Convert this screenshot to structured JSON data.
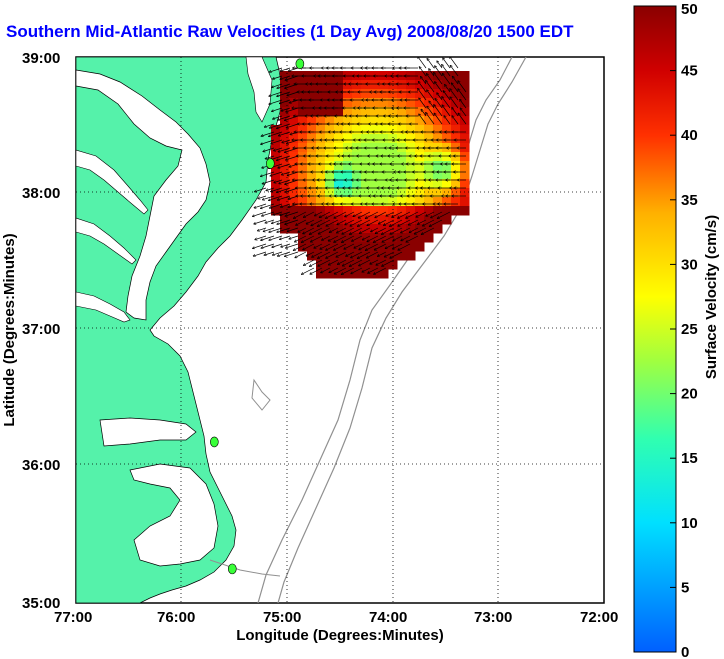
{
  "title": "Southern Mid-Atlantic Raw Velocities (1 Day Avg) 2008/08/20 1500 EDT",
  "axes": {
    "xlabel": "Longitude (Degrees:Minutes)",
    "ylabel": "Latitude (Degrees:Minutes)",
    "xticks": [
      "77:00",
      "76:00",
      "75:00",
      "74:00",
      "73:00",
      "72:00"
    ],
    "yticks": [
      "39:00",
      "38:00",
      "37:00",
      "36:00",
      "35:00"
    ],
    "xlim": [
      -77,
      -72
    ],
    "ylim": [
      35,
      39
    ],
    "grid": "dotted"
  },
  "colorbar": {
    "label": "Surface Velocity (cm/s)",
    "ticks": [
      "50",
      "45",
      "40",
      "35",
      "30",
      "25",
      "20",
      "15",
      "10",
      "5",
      "0"
    ],
    "range": [
      0,
      50
    ]
  },
  "colors": {
    "land": "#55f2aa",
    "water": "#ffffff",
    "title": "#0000ff",
    "station": "#39ff39"
  },
  "stations": [
    {
      "lon": -74.88,
      "lat": 38.95
    },
    {
      "lon": -75.16,
      "lat": 38.22
    },
    {
      "lon": -75.69,
      "lat": 36.18
    },
    {
      "lon": -75.52,
      "lat": 35.25
    }
  ]
}
